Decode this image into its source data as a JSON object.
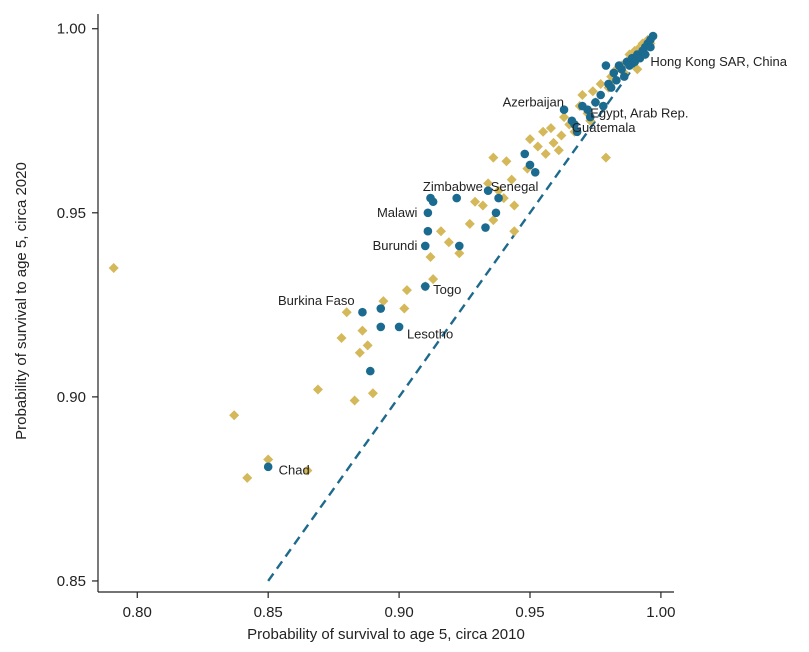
{
  "chart_data": {
    "type": "scatter",
    "title": "",
    "xlabel": "Probability of survival to age 5, circa 2010",
    "ylabel": "Probability of survival to age 5, circa 2020",
    "xlim": [
      0.785,
      1.005
    ],
    "ylim": [
      0.847,
      1.004
    ],
    "x_ticks": [
      "0.80",
      "0.85",
      "0.90",
      "0.95",
      "1.00"
    ],
    "y_ticks": [
      "0.85",
      "0.90",
      "0.95",
      "1.00"
    ],
    "x_tick_values": [
      0.8,
      0.85,
      0.9,
      0.95,
      1.0
    ],
    "y_tick_values": [
      0.85,
      0.9,
      0.95,
      1.0
    ],
    "grid": false,
    "reference_line": {
      "style": "dashed",
      "color": "#1f6a8c",
      "points": [
        [
          0.85,
          0.85
        ],
        [
          0.994,
          0.994
        ]
      ]
    },
    "colors": {
      "series_a": "#d4b85a",
      "series_b": "#1b6a8f",
      "axis": "#222222"
    },
    "series": [
      {
        "marker": "diamond",
        "color": "#d4b85a",
        "points": [
          [
            0.791,
            0.935
          ],
          [
            0.837,
            0.895
          ],
          [
            0.842,
            0.878
          ],
          [
            0.85,
            0.883
          ],
          [
            0.865,
            0.88
          ],
          [
            0.869,
            0.902
          ],
          [
            0.878,
            0.916
          ],
          [
            0.88,
            0.923
          ],
          [
            0.883,
            0.899
          ],
          [
            0.885,
            0.912
          ],
          [
            0.886,
            0.918
          ],
          [
            0.888,
            0.914
          ],
          [
            0.89,
            0.901
          ],
          [
            0.894,
            0.926
          ],
          [
            0.902,
            0.924
          ],
          [
            0.903,
            0.929
          ],
          [
            0.91,
            0.93
          ],
          [
            0.912,
            0.938
          ],
          [
            0.913,
            0.932
          ],
          [
            0.916,
            0.945
          ],
          [
            0.919,
            0.942
          ],
          [
            0.923,
            0.939
          ],
          [
            0.927,
            0.947
          ],
          [
            0.929,
            0.953
          ],
          [
            0.932,
            0.952
          ],
          [
            0.934,
            0.958
          ],
          [
            0.936,
            0.948
          ],
          [
            0.936,
            0.965
          ],
          [
            0.938,
            0.956
          ],
          [
            0.94,
            0.954
          ],
          [
            0.941,
            0.964
          ],
          [
            0.943,
            0.959
          ],
          [
            0.944,
            0.945
          ],
          [
            0.944,
            0.952
          ],
          [
            0.949,
            0.962
          ],
          [
            0.95,
            0.97
          ],
          [
            0.953,
            0.968
          ],
          [
            0.955,
            0.972
          ],
          [
            0.956,
            0.966
          ],
          [
            0.958,
            0.973
          ],
          [
            0.959,
            0.969
          ],
          [
            0.961,
            0.967
          ],
          [
            0.962,
            0.971
          ],
          [
            0.963,
            0.976
          ],
          [
            0.965,
            0.974
          ],
          [
            0.967,
            0.972
          ],
          [
            0.969,
            0.979
          ],
          [
            0.97,
            0.982
          ],
          [
            0.972,
            0.977
          ],
          [
            0.973,
            0.975
          ],
          [
            0.974,
            0.983
          ],
          [
            0.975,
            0.98
          ],
          [
            0.977,
            0.985
          ],
          [
            0.979,
            0.965
          ],
          [
            0.98,
            0.984
          ],
          [
            0.981,
            0.987
          ],
          [
            0.982,
            0.986
          ],
          [
            0.983,
            0.989
          ],
          [
            0.985,
            0.99
          ],
          [
            0.986,
            0.988
          ],
          [
            0.987,
            0.991
          ],
          [
            0.988,
            0.993
          ],
          [
            0.989,
            0.992
          ],
          [
            0.99,
            0.994
          ],
          [
            0.991,
            0.989
          ],
          [
            0.992,
            0.995
          ],
          [
            0.993,
            0.996
          ],
          [
            0.994,
            0.993
          ],
          [
            0.995,
            0.997
          ],
          [
            0.996,
            0.996
          ]
        ]
      },
      {
        "marker": "circle",
        "color": "#1b6a8f",
        "points": [
          [
            0.85,
            0.881
          ],
          [
            0.886,
            0.923
          ],
          [
            0.889,
            0.907
          ],
          [
            0.893,
            0.919
          ],
          [
            0.893,
            0.924
          ],
          [
            0.9,
            0.919
          ],
          [
            0.91,
            0.93
          ],
          [
            0.91,
            0.941
          ],
          [
            0.911,
            0.945
          ],
          [
            0.911,
            0.95
          ],
          [
            0.912,
            0.954
          ],
          [
            0.913,
            0.953
          ],
          [
            0.922,
            0.954
          ],
          [
            0.923,
            0.941
          ],
          [
            0.933,
            0.946
          ],
          [
            0.934,
            0.956
          ],
          [
            0.937,
            0.95
          ],
          [
            0.938,
            0.954
          ],
          [
            0.948,
            0.966
          ],
          [
            0.95,
            0.963
          ],
          [
            0.952,
            0.961
          ],
          [
            0.963,
            0.978
          ],
          [
            0.966,
            0.975
          ],
          [
            0.967,
            0.974
          ],
          [
            0.968,
            0.972
          ],
          [
            0.97,
            0.979
          ],
          [
            0.972,
            0.978
          ],
          [
            0.973,
            0.976
          ],
          [
            0.975,
            0.98
          ],
          [
            0.977,
            0.982
          ],
          [
            0.978,
            0.979
          ],
          [
            0.979,
            0.99
          ],
          [
            0.98,
            0.985
          ],
          [
            0.981,
            0.984
          ],
          [
            0.982,
            0.988
          ],
          [
            0.983,
            0.986
          ],
          [
            0.984,
            0.99
          ],
          [
            0.985,
            0.989
          ],
          [
            0.986,
            0.987
          ],
          [
            0.987,
            0.991
          ],
          [
            0.988,
            0.99
          ],
          [
            0.989,
            0.992
          ],
          [
            0.99,
            0.991
          ],
          [
            0.991,
            0.993
          ],
          [
            0.992,
            0.992
          ],
          [
            0.993,
            0.994
          ],
          [
            0.994,
            0.995
          ],
          [
            0.995,
            0.996
          ],
          [
            0.996,
            0.997
          ],
          [
            0.997,
            0.998
          ],
          [
            0.996,
            0.995
          ],
          [
            0.994,
            0.993
          ]
        ]
      }
    ],
    "annotations": [
      {
        "text": "Hong Kong SAR, China",
        "x": 0.996,
        "y": 0.991,
        "anchor": "start"
      },
      {
        "text": "Azerbaijan",
        "x": 0.963,
        "y": 0.98,
        "anchor": "end"
      },
      {
        "text": "Egypt, Arab Rep.",
        "x": 0.973,
        "y": 0.977,
        "anchor": "start"
      },
      {
        "text": "Guatemala",
        "x": 0.966,
        "y": 0.973,
        "anchor": "start"
      },
      {
        "text": "Zimbabwe",
        "x": 0.932,
        "y": 0.957,
        "anchor": "end"
      },
      {
        "text": "Senegal",
        "x": 0.935,
        "y": 0.957,
        "anchor": "start"
      },
      {
        "text": "Malawi",
        "x": 0.907,
        "y": 0.95,
        "anchor": "end"
      },
      {
        "text": "Burundi",
        "x": 0.907,
        "y": 0.941,
        "anchor": "end"
      },
      {
        "text": "Togo",
        "x": 0.913,
        "y": 0.929,
        "anchor": "start"
      },
      {
        "text": "Burkina Faso",
        "x": 0.883,
        "y": 0.926,
        "anchor": "end"
      },
      {
        "text": "Lesotho",
        "x": 0.903,
        "y": 0.917,
        "anchor": "start"
      },
      {
        "text": "Chad",
        "x": 0.854,
        "y": 0.88,
        "anchor": "start"
      }
    ]
  }
}
